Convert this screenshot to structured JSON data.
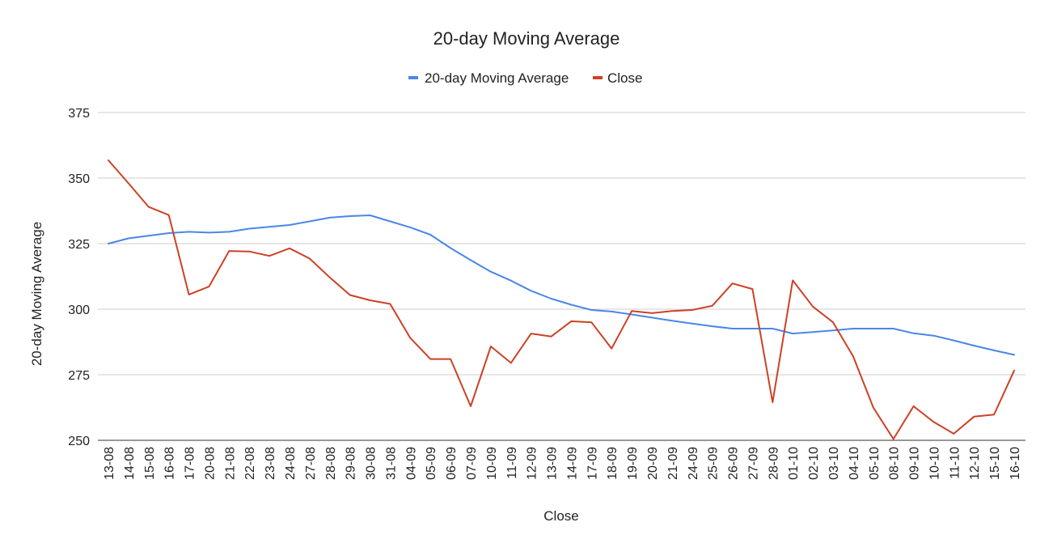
{
  "chart_data": {
    "type": "line",
    "title": "20-day Moving Average",
    "xlabel": "Close",
    "ylabel": "20-day Moving Average",
    "ylim": [
      250,
      375
    ],
    "yticks": [
      250,
      275,
      300,
      325,
      350,
      375
    ],
    "grid": true,
    "legend_position": "top",
    "categories": [
      "13-08",
      "14-08",
      "15-08",
      "16-08",
      "17-08",
      "20-08",
      "21-08",
      "22-08",
      "23-08",
      "24-08",
      "27-08",
      "28-08",
      "29-08",
      "30-08",
      "31-08",
      "04-09",
      "05-09",
      "06-09",
      "07-09",
      "10-09",
      "11-09",
      "12-09",
      "13-09",
      "14-09",
      "17-09",
      "18-09",
      "19-09",
      "20-09",
      "21-09",
      "24-09",
      "25-09",
      "26-09",
      "27-09",
      "28-09",
      "01-10",
      "02-10",
      "03-10",
      "04-10",
      "05-10",
      "08-10",
      "09-10",
      "10-10",
      "11-10",
      "12-10",
      "15-10",
      "16-10"
    ],
    "series": [
      {
        "name": "20-day Moving Average",
        "color": "#4a86e8",
        "values": [
          325,
          327,
          328,
          329,
          329.5,
          329.2,
          329.5,
          330.7,
          331.4,
          332.1,
          333.5,
          334.9,
          335.5,
          335.8,
          333.5,
          331.2,
          328.4,
          323.3,
          318.7,
          314.3,
          310.9,
          307,
          304,
          301.7,
          299.7,
          299.1,
          298,
          296.8,
          295.6,
          294.5,
          293.5,
          292.6,
          292.6,
          292.6,
          290.7,
          291.3,
          291.9,
          292.6,
          292.6,
          292.6,
          290.8,
          289.9,
          288.1,
          286.1,
          284.3,
          282.6
        ]
      },
      {
        "name": "Close",
        "color": "#cc4125",
        "values": [
          356.8,
          348,
          339,
          335.9,
          305.6,
          308.6,
          322.2,
          322,
          320.3,
          323.2,
          319.3,
          312.1,
          305.4,
          303.4,
          302,
          289,
          281,
          281,
          263,
          285.8,
          279.5,
          290.7,
          289.6,
          295.4,
          295,
          285,
          299.3,
          298.5,
          299.3,
          299.7,
          301.3,
          309.8,
          307.7,
          264.5,
          311,
          301,
          295,
          282,
          262.5,
          250.5,
          263,
          257,
          252.5,
          259,
          259.8,
          276.6
        ]
      }
    ]
  }
}
